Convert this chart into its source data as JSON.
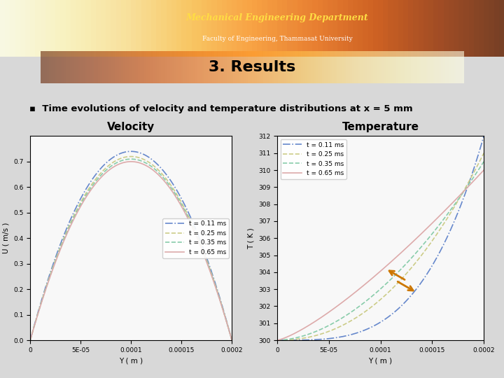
{
  "title": "3. Results",
  "bullet_text": "Time evolutions of velocity and temperature distributions at x = 5 mm",
  "slide_bg": "#d8d8d8",
  "header_bg_top": "#8b3a00",
  "header_bg_bottom": "#c87020",
  "title_box_color1": "#f5d080",
  "title_box_color2": "#e8a030",
  "content_box_bg": "#e8e8e8",
  "plot_bg": "#f0f0f0",
  "vel_ylabel": "U ( m/s )",
  "vel_xlabel": "Y ( m )",
  "vel_title": "Velocity",
  "vel_xlim": [
    0,
    0.0002
  ],
  "vel_ylim": [
    0,
    0.8
  ],
  "vel_yticks": [
    0,
    0.1,
    0.2,
    0.3,
    0.4,
    0.5,
    0.6,
    0.7
  ],
  "vel_xticks": [
    0,
    5e-05,
    0.0001,
    0.00015,
    0.0002
  ],
  "vel_xtick_labels": [
    "0",
    "5E-05",
    "0.0001",
    "0.00015",
    "0.0002"
  ],
  "temp_ylabel": "T ( K )",
  "temp_xlabel": "Y ( m )",
  "temp_title": "Temperature",
  "temp_xlim": [
    0,
    0.0002
  ],
  "temp_ylim": [
    300,
    312
  ],
  "temp_yticks": [
    300,
    301,
    302,
    303,
    304,
    305,
    306,
    307,
    308,
    309,
    310,
    311,
    312
  ],
  "temp_xticks": [
    0,
    5e-05,
    0.0001,
    0.00015,
    0.0002
  ],
  "temp_xtick_labels": [
    "0",
    "5E-05",
    "0.0001",
    "0.00015",
    "0.0002"
  ],
  "times": [
    "t = 0.11 ms",
    "t = 0.25 ms",
    "t = 0.35 ms",
    "t = 0.65 ms"
  ],
  "vel_line_colors": [
    "#6688cc",
    "#cccc88",
    "#88ccaa",
    "#ddaaaa"
  ],
  "temp_line_colors": [
    "#6688cc",
    "#cccc88",
    "#88ccaa",
    "#ddaaaa"
  ],
  "vel_line_styles": [
    "-.",
    "--",
    "--",
    "-"
  ],
  "temp_line_styles": [
    "-.",
    "--",
    "--",
    "-"
  ],
  "vel_peaks": [
    0.74,
    0.72,
    0.71,
    0.7
  ],
  "temp_wall_values": [
    312,
    311,
    310.5,
    310
  ],
  "arrow_color": "#cc7700"
}
